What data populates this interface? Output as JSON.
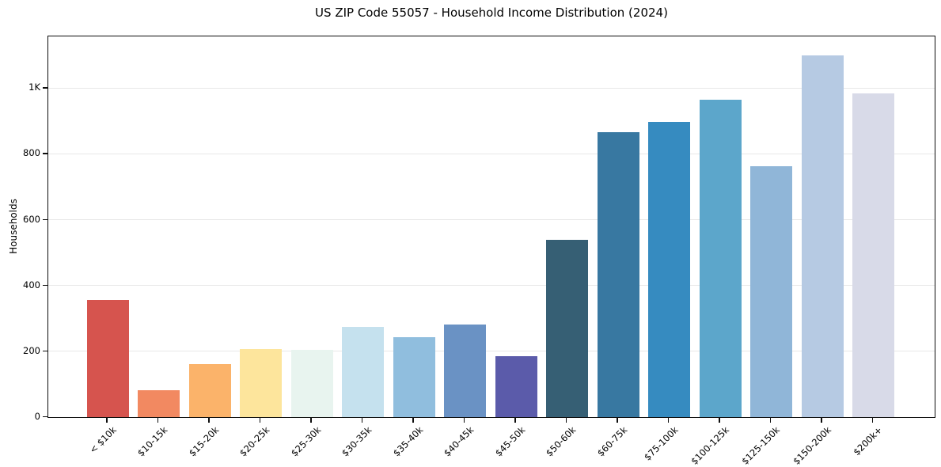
{
  "title": "US ZIP Code 55057 - Household Income Distribution (2024)",
  "chart_data": {
    "type": "bar",
    "title": "US ZIP Code 55057 - Household Income Distribution (2024)",
    "xlabel": "",
    "ylabel": "Households",
    "categories": [
      "< $10k",
      "$10-15k",
      "$15-20k",
      "$20-25k",
      "$25-30k",
      "$30-35k",
      "$35-40k",
      "$40-45k",
      "$45-50k",
      "$50-60k",
      "$60-75k",
      "$75-100k",
      "$100-125k",
      "$125-150k",
      "$150-200k",
      "$200k+"
    ],
    "values": [
      355,
      82,
      160,
      207,
      204,
      275,
      242,
      282,
      186,
      540,
      865,
      898,
      965,
      762,
      1100,
      984
    ],
    "bar_colors": [
      "#d6544e",
      "#f28961",
      "#fbb36a",
      "#fde59c",
      "#e8f4ef",
      "#c5e1ee",
      "#90bede",
      "#6a92c4",
      "#5b5baa",
      "#365f74",
      "#3878a1",
      "#368bc0",
      "#5ca6cb",
      "#90b6d8",
      "#b6cae3",
      "#d8dae8"
    ],
    "ylim": [
      0,
      1157
    ],
    "yticks": [
      {
        "value": 0,
        "label": "0"
      },
      {
        "value": 200,
        "label": "200"
      },
      {
        "value": 400,
        "label": "400"
      },
      {
        "value": 600,
        "label": "600"
      },
      {
        "value": 800,
        "label": "800"
      },
      {
        "value": 1000,
        "label": "1K"
      }
    ],
    "grid": "horizontal-only",
    "legend": "none",
    "background_color": "#ffffff",
    "grid_color": "#e8e8e8",
    "axis_color": "#0d0d0d"
  }
}
